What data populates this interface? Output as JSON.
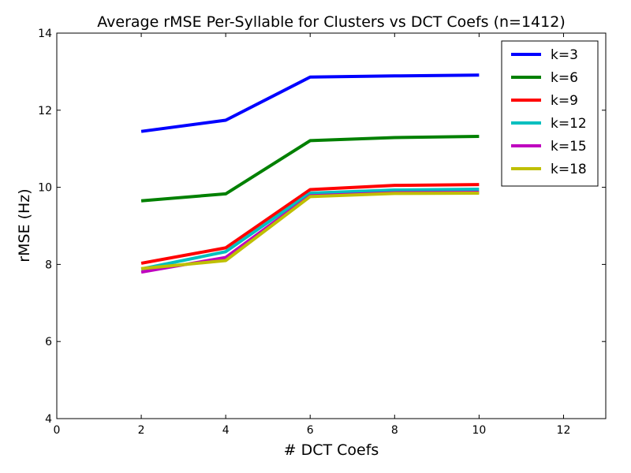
{
  "chart_data": {
    "type": "line",
    "title": "Average rMSE Per-Syllable for Clusters vs DCT Coefs (n=1412)",
    "xlabel": "# DCT Coefs",
    "ylabel": "rMSE (Hz)",
    "xlim": [
      0,
      13
    ],
    "ylim": [
      4,
      14
    ],
    "xticks": [
      0,
      2,
      4,
      6,
      8,
      10,
      12
    ],
    "yticks": [
      4,
      6,
      8,
      10,
      12,
      14
    ],
    "grid": false,
    "legend_position": "top-right",
    "x": [
      2,
      4,
      6,
      8,
      10
    ],
    "series": [
      {
        "name": "k=3",
        "color": "#0000ff",
        "values": [
          11.45,
          11.74,
          12.86,
          12.89,
          12.91
        ]
      },
      {
        "name": "k=6",
        "color": "#008000",
        "values": [
          9.65,
          9.83,
          11.21,
          11.29,
          11.32
        ]
      },
      {
        "name": "k=9",
        "color": "#ff0000",
        "values": [
          8.03,
          8.43,
          9.94,
          10.05,
          10.07
        ]
      },
      {
        "name": "k=12",
        "color": "#00bfbf",
        "values": [
          7.88,
          8.33,
          9.85,
          9.93,
          9.95
        ]
      },
      {
        "name": "k=15",
        "color": "#bf00bf",
        "values": [
          7.8,
          8.18,
          9.78,
          9.86,
          9.87
        ]
      },
      {
        "name": "k=18",
        "color": "#bfbf00",
        "values": [
          7.89,
          8.1,
          9.76,
          9.84,
          9.85
        ]
      }
    ]
  }
}
